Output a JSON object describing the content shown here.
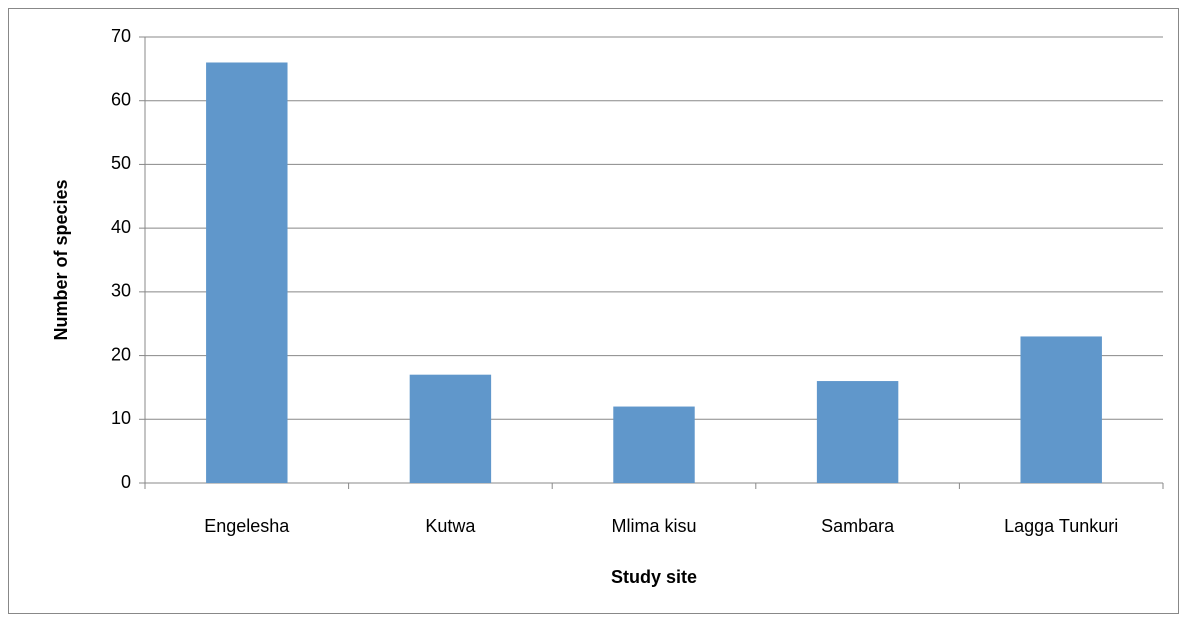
{
  "chart_data": {
    "type": "bar",
    "categories": [
      "Engelesha",
      "Kutwa",
      "Mlima kisu",
      "Sambara",
      "Lagga Tunkuri"
    ],
    "values": [
      66,
      17,
      12,
      16,
      23
    ],
    "color": "#6097cb",
    "xlabel": "Study site",
    "ylabel": "Number of species",
    "ylim": [
      0,
      70
    ],
    "yticks": [
      0,
      10,
      20,
      30,
      40,
      50,
      60,
      70
    ],
    "grid": true
  }
}
